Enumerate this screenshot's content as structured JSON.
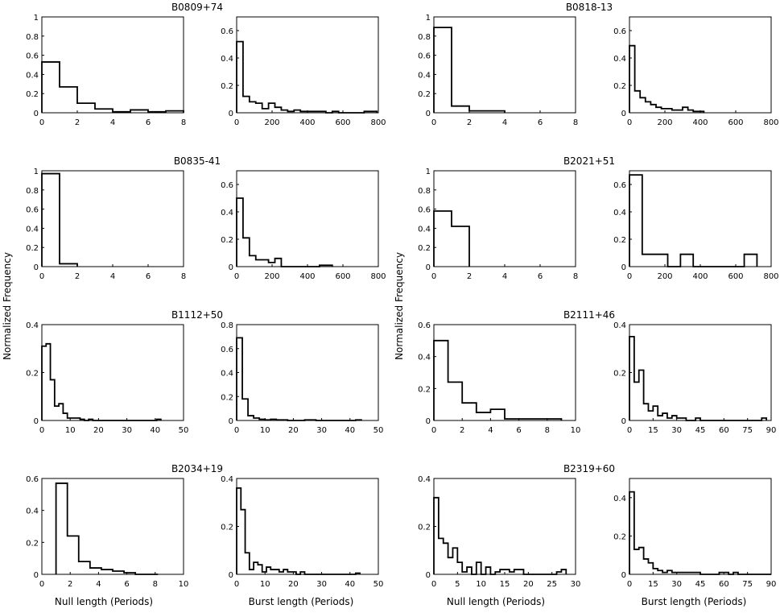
{
  "figure": {
    "y_label": "Normalized Frequency",
    "x_label_null": "Null length (Periods)",
    "x_label_burst": "Burst length (Periods)"
  },
  "chart_data": [
    {
      "pulsar": "B0809+74",
      "type": "histogram",
      "kind": "null",
      "xlim": [
        0,
        8
      ],
      "ylim": [
        0,
        1
      ],
      "xticks": [
        0,
        2,
        4,
        6,
        8
      ],
      "yticks": [
        0,
        0.2,
        0.4,
        0.6,
        0.8,
        1
      ],
      "ytick_labels": [
        "0",
        "0.2",
        "0.4",
        "0.6",
        "0.8",
        "1"
      ],
      "bin_width": 1,
      "bin_start": 0,
      "values": [
        0.53,
        0.27,
        0.1,
        0.04,
        0.01,
        0.03,
        0.01,
        0.02
      ]
    },
    {
      "pulsar": "B0809+74",
      "type": "histogram",
      "kind": "burst",
      "xlim": [
        0,
        800
      ],
      "ylim": [
        0,
        0.7
      ],
      "xticks": [
        0,
        200,
        400,
        600,
        800
      ],
      "yticks": [
        0,
        0.2,
        0.4,
        0.6
      ],
      "ytick_labels": [
        "0",
        "0.2",
        "0.4",
        "0.6"
      ],
      "bin_width": 36,
      "bin_start": 0,
      "values": [
        0.52,
        0.12,
        0.08,
        0.07,
        0.03,
        0.07,
        0.04,
        0.02,
        0.01,
        0.02,
        0.01,
        0.01,
        0.01,
        0.01,
        0.0,
        0.01,
        0.0,
        0.0,
        0.0,
        0.0,
        0.01,
        0.01
      ]
    },
    {
      "pulsar": "B0818-13",
      "type": "histogram",
      "kind": "null",
      "xlim": [
        0,
        8
      ],
      "ylim": [
        0,
        1
      ],
      "xticks": [
        0,
        2,
        4,
        6,
        8
      ],
      "yticks": [
        0,
        0.2,
        0.4,
        0.6,
        0.8,
        1
      ],
      "ytick_labels": [
        "0",
        "0.2",
        "0.4",
        "0.6",
        "0.8",
        "1"
      ],
      "bin_width": 1,
      "bin_start": 0,
      "values": [
        0.89,
        0.07,
        0.02,
        0.02
      ]
    },
    {
      "pulsar": "B0818-13",
      "type": "histogram",
      "kind": "burst",
      "xlim": [
        0,
        800
      ],
      "ylim": [
        0,
        0.7
      ],
      "xticks": [
        0,
        200,
        400,
        600,
        800
      ],
      "yticks": [
        0,
        0.2,
        0.4,
        0.6
      ],
      "ytick_labels": [
        "0",
        "0.2",
        "0.4",
        "0.6"
      ],
      "bin_width": 30,
      "bin_start": 0,
      "values": [
        0.49,
        0.16,
        0.11,
        0.08,
        0.06,
        0.04,
        0.03,
        0.03,
        0.02,
        0.02,
        0.04,
        0.02,
        0.01,
        0.01
      ]
    },
    {
      "pulsar": "B0835-41",
      "type": "histogram",
      "kind": "null",
      "xlim": [
        0,
        8
      ],
      "ylim": [
        0,
        1
      ],
      "xticks": [
        0,
        2,
        4,
        6,
        8
      ],
      "yticks": [
        0,
        0.2,
        0.4,
        0.6,
        0.8,
        1
      ],
      "ytick_labels": [
        "0",
        "0.2",
        "0.4",
        "0.6",
        "0.8",
        "1"
      ],
      "bin_width": 1,
      "bin_start": 0,
      "values": [
        0.97,
        0.03
      ]
    },
    {
      "pulsar": "B0835-41",
      "type": "histogram",
      "kind": "burst",
      "xlim": [
        0,
        800
      ],
      "ylim": [
        0,
        0.7
      ],
      "xticks": [
        0,
        200,
        400,
        600,
        800
      ],
      "yticks": [
        0,
        0.2,
        0.4,
        0.6
      ],
      "ytick_labels": [
        "0",
        "0.2",
        "0.4",
        "0.6"
      ],
      "bin_width": 36,
      "bin_start": 0,
      "values": [
        0.5,
        0.21,
        0.08,
        0.05,
        0.05,
        0.03,
        0.06,
        0.0,
        0.0,
        0.0,
        0.0,
        0.0,
        0.0,
        0.01,
        0.01
      ]
    },
    {
      "pulsar": "B2021+51",
      "type": "histogram",
      "kind": "null",
      "xlim": [
        0,
        8
      ],
      "ylim": [
        0,
        1
      ],
      "xticks": [
        0,
        2,
        4,
        6,
        8
      ],
      "yticks": [
        0,
        0.2,
        0.4,
        0.6,
        0.8,
        1
      ],
      "ytick_labels": [
        "0",
        "0.2",
        "0.4",
        "0.6",
        "0.8",
        "1"
      ],
      "bin_width": 1,
      "bin_start": 0,
      "values": [
        0.58,
        0.42
      ]
    },
    {
      "pulsar": "B2021+51",
      "type": "histogram",
      "kind": "burst",
      "xlim": [
        0,
        800
      ],
      "ylim": [
        0,
        0.7
      ],
      "xticks": [
        0,
        200,
        400,
        600,
        800
      ],
      "yticks": [
        0,
        0.2,
        0.4,
        0.6
      ],
      "ytick_labels": [
        "0",
        "0.2",
        "0.4",
        "0.6"
      ],
      "bin_width": 72,
      "bin_start": 0,
      "values": [
        0.67,
        0.09,
        0.09,
        0.0,
        0.09,
        0.0,
        0.0,
        0.0,
        0.0,
        0.09
      ]
    },
    {
      "pulsar": "B1112+50",
      "type": "histogram",
      "kind": "null",
      "xlim": [
        0,
        50
      ],
      "ylim": [
        0,
        0.4
      ],
      "xticks": [
        0,
        10,
        20,
        30,
        40,
        50
      ],
      "yticks": [
        0,
        0.2,
        0.4
      ],
      "ytick_labels": [
        "0",
        "0.2",
        "0.4"
      ],
      "bin_width": 1.5,
      "bin_start": 0,
      "values": [
        0.31,
        0.32,
        0.17,
        0.06,
        0.07,
        0.03,
        0.01,
        0.01,
        0.01,
        0.005,
        0.0,
        0.005,
        0.0,
        0.0,
        0.0,
        0.0,
        0.0,
        0.0,
        0.0,
        0.0,
        0.0,
        0.0,
        0.0,
        0.0,
        0.0,
        0.0,
        0.0,
        0.005
      ]
    },
    {
      "pulsar": "B1112+50",
      "type": "histogram",
      "kind": "burst",
      "xlim": [
        0,
        50
      ],
      "ylim": [
        0,
        0.8
      ],
      "xticks": [
        0,
        10,
        20,
        30,
        40,
        50
      ],
      "yticks": [
        0,
        0.2,
        0.4,
        0.6,
        0.8
      ],
      "ytick_labels": [
        "0",
        "0.2",
        "0.4",
        "0.6",
        "0.8"
      ],
      "bin_width": 2,
      "bin_start": 0,
      "values": [
        0.69,
        0.18,
        0.04,
        0.02,
        0.01,
        0.005,
        0.01,
        0.005,
        0.005,
        0.0,
        0.0,
        0.0,
        0.005,
        0.005,
        0.0,
        0.0,
        0.0,
        0.0,
        0.0,
        0.0,
        0.0,
        0.005
      ]
    },
    {
      "pulsar": "B2111+46",
      "type": "histogram",
      "kind": "null",
      "xlim": [
        0,
        10
      ],
      "ylim": [
        0,
        0.6
      ],
      "xticks": [
        0,
        2,
        4,
        6,
        8,
        10
      ],
      "yticks": [
        0,
        0.2,
        0.4,
        0.6
      ],
      "ytick_labels": [
        "0",
        "0.2",
        "0.4",
        "0.6"
      ],
      "bin_width": 1,
      "bin_start": 0,
      "values": [
        0.5,
        0.24,
        0.11,
        0.05,
        0.07,
        0.01,
        0.01,
        0.01,
        0.01
      ]
    },
    {
      "pulsar": "B2111+46",
      "type": "histogram",
      "kind": "burst",
      "xlim": [
        0,
        90
      ],
      "ylim": [
        0,
        0.4
      ],
      "xticks": [
        0,
        15,
        30,
        45,
        60,
        75,
        90
      ],
      "yticks": [
        0,
        0.2,
        0.4
      ],
      "ytick_labels": [
        "0",
        "0.2",
        "0.4"
      ],
      "bin_width": 3,
      "bin_start": 0,
      "values": [
        0.35,
        0.16,
        0.21,
        0.07,
        0.04,
        0.06,
        0.02,
        0.03,
        0.01,
        0.02,
        0.01,
        0.01,
        0.0,
        0.0,
        0.01,
        0.0,
        0.0,
        0.0,
        0.0,
        0.0,
        0.0,
        0.0,
        0.0,
        0.0,
        0.0,
        0.0,
        0.0,
        0.0,
        0.01
      ]
    },
    {
      "pulsar": "B2034+19",
      "type": "histogram",
      "kind": "null",
      "xlim": [
        0,
        10
      ],
      "ylim": [
        0,
        0.6
      ],
      "xticks": [
        0,
        2,
        4,
        6,
        8,
        10
      ],
      "yticks": [
        0,
        0.2,
        0.4,
        0.6
      ],
      "ytick_labels": [
        "0",
        "0.2",
        "0.4",
        "0.6"
      ],
      "bin_width": 0.8,
      "bin_start": 1,
      "values": [
        0.57,
        0.24,
        0.08,
        0.04,
        0.03,
        0.02,
        0.01,
        0.0,
        0.0
      ]
    },
    {
      "pulsar": "B2034+19",
      "type": "histogram",
      "kind": "burst",
      "xlim": [
        0,
        50
      ],
      "ylim": [
        0,
        0.4
      ],
      "xticks": [
        0,
        10,
        20,
        30,
        40,
        50
      ],
      "yticks": [
        0,
        0.2,
        0.4
      ],
      "ytick_labels": [
        "0",
        "0.2",
        "0.4"
      ],
      "bin_width": 1.5,
      "bin_start": 0,
      "values": [
        0.36,
        0.27,
        0.09,
        0.02,
        0.05,
        0.04,
        0.01,
        0.03,
        0.02,
        0.02,
        0.01,
        0.02,
        0.01,
        0.01,
        0.0,
        0.01,
        0.0,
        0.0,
        0.0,
        0.0,
        0.0,
        0.0,
        0.0,
        0.0,
        0.0,
        0.0,
        0.0,
        0.0,
        0.005
      ]
    },
    {
      "pulsar": "B2319+60",
      "type": "histogram",
      "kind": "null",
      "xlim": [
        0,
        30
      ],
      "ylim": [
        0,
        0.4
      ],
      "xticks": [
        0,
        5,
        10,
        15,
        20,
        25,
        30
      ],
      "yticks": [
        0,
        0.2,
        0.4
      ],
      "ytick_labels": [
        "0",
        "0.2",
        "0.4"
      ],
      "bin_width": 1,
      "bin_start": 0,
      "values": [
        0.32,
        0.15,
        0.13,
        0.07,
        0.11,
        0.05,
        0.01,
        0.03,
        0.0,
        0.05,
        0.0,
        0.03,
        0.0,
        0.01,
        0.02,
        0.02,
        0.01,
        0.02,
        0.02,
        0.0,
        0.0,
        0.0,
        0.0,
        0.0,
        0.0,
        0.0,
        0.01,
        0.02
      ]
    },
    {
      "pulsar": "B2319+60",
      "type": "histogram",
      "kind": "burst",
      "xlim": [
        0,
        90
      ],
      "ylim": [
        0,
        0.5
      ],
      "xticks": [
        0,
        15,
        30,
        45,
        60,
        75,
        90
      ],
      "yticks": [
        0,
        0.2,
        0.4
      ],
      "ytick_labels": [
        "0",
        "0.2",
        "0.4"
      ],
      "bin_width": 3,
      "bin_start": 0,
      "values": [
        0.43,
        0.13,
        0.14,
        0.08,
        0.06,
        0.03,
        0.02,
        0.01,
        0.02,
        0.01,
        0.01,
        0.01,
        0.01,
        0.01,
        0.01,
        0.0,
        0.0,
        0.0,
        0.0,
        0.01,
        0.01,
        0.0,
        0.01,
        0.0,
        0.0,
        0.0,
        0.0,
        0.0,
        0.0,
        0.0
      ]
    }
  ]
}
